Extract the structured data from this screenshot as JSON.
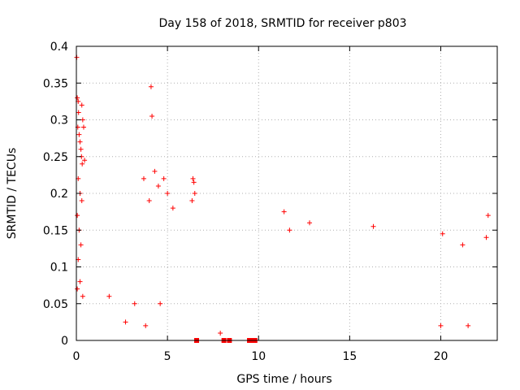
{
  "chart_data": {
    "type": "scatter",
    "title": "Day 158 of 2018, SRMTID for receiver p803",
    "xlabel": "GPS time / hours",
    "ylabel": "SRMTID / TECUs",
    "xlim": [
      0,
      23.1
    ],
    "ylim": [
      0,
      0.4
    ],
    "x_ticks": [
      0,
      5,
      10,
      15,
      20
    ],
    "x_tick_labels": [
      "0",
      "5",
      "10",
      "15",
      "20"
    ],
    "y_ticks": [
      0,
      0.05,
      0.1,
      0.15,
      0.2,
      0.25,
      0.3,
      0.35,
      0.4
    ],
    "y_tick_labels": [
      "0",
      "0.05",
      "0.1",
      "0.15",
      "0.2",
      "0.25",
      "0.3",
      "0.35",
      "0.4"
    ],
    "grid": true,
    "marker": "+",
    "color": "#ff0000",
    "series": [
      {
        "name": "SRMTID",
        "points": [
          [
            0.02,
            0.385
          ],
          [
            0.05,
            0.33
          ],
          [
            0.1,
            0.325
          ],
          [
            0.12,
            0.31
          ],
          [
            0.08,
            0.29
          ],
          [
            0.15,
            0.28
          ],
          [
            0.2,
            0.27
          ],
          [
            0.25,
            0.26
          ],
          [
            0.3,
            0.32
          ],
          [
            0.35,
            0.3
          ],
          [
            0.4,
            0.29
          ],
          [
            0.28,
            0.25
          ],
          [
            0.32,
            0.24
          ],
          [
            0.45,
            0.245
          ],
          [
            0.1,
            0.22
          ],
          [
            0.2,
            0.2
          ],
          [
            0.3,
            0.19
          ],
          [
            0.05,
            0.17
          ],
          [
            0.15,
            0.15
          ],
          [
            0.25,
            0.13
          ],
          [
            0.1,
            0.11
          ],
          [
            0.05,
            0.07
          ],
          [
            0.2,
            0.08
          ],
          [
            0.35,
            0.06
          ],
          [
            4.1,
            0.345
          ],
          [
            4.15,
            0.305
          ],
          [
            4.3,
            0.23
          ],
          [
            3.7,
            0.22
          ],
          [
            4.5,
            0.21
          ],
          [
            4.8,
            0.22
          ],
          [
            4.0,
            0.19
          ],
          [
            5.0,
            0.2
          ],
          [
            5.3,
            0.18
          ],
          [
            6.4,
            0.22
          ],
          [
            6.45,
            0.215
          ],
          [
            6.5,
            0.2
          ],
          [
            6.35,
            0.19
          ],
          [
            2.7,
            0.025
          ],
          [
            3.8,
            0.02
          ],
          [
            4.6,
            0.05
          ],
          [
            3.2,
            0.05
          ],
          [
            1.8,
            0.06
          ],
          [
            6.6,
            0.0
          ],
          [
            8.1,
            0.0
          ],
          [
            8.4,
            0.0
          ],
          [
            9.5,
            0.0
          ],
          [
            9.6,
            0.0
          ],
          [
            9.8,
            0.0
          ],
          [
            7.9,
            0.01
          ],
          [
            11.4,
            0.175
          ],
          [
            12.8,
            0.16
          ],
          [
            11.7,
            0.15
          ],
          [
            16.3,
            0.155
          ],
          [
            22.6,
            0.17
          ],
          [
            20.1,
            0.145
          ],
          [
            22.5,
            0.14
          ],
          [
            21.2,
            0.13
          ],
          [
            20.0,
            0.02
          ],
          [
            21.5,
            0.02
          ]
        ]
      }
    ]
  }
}
